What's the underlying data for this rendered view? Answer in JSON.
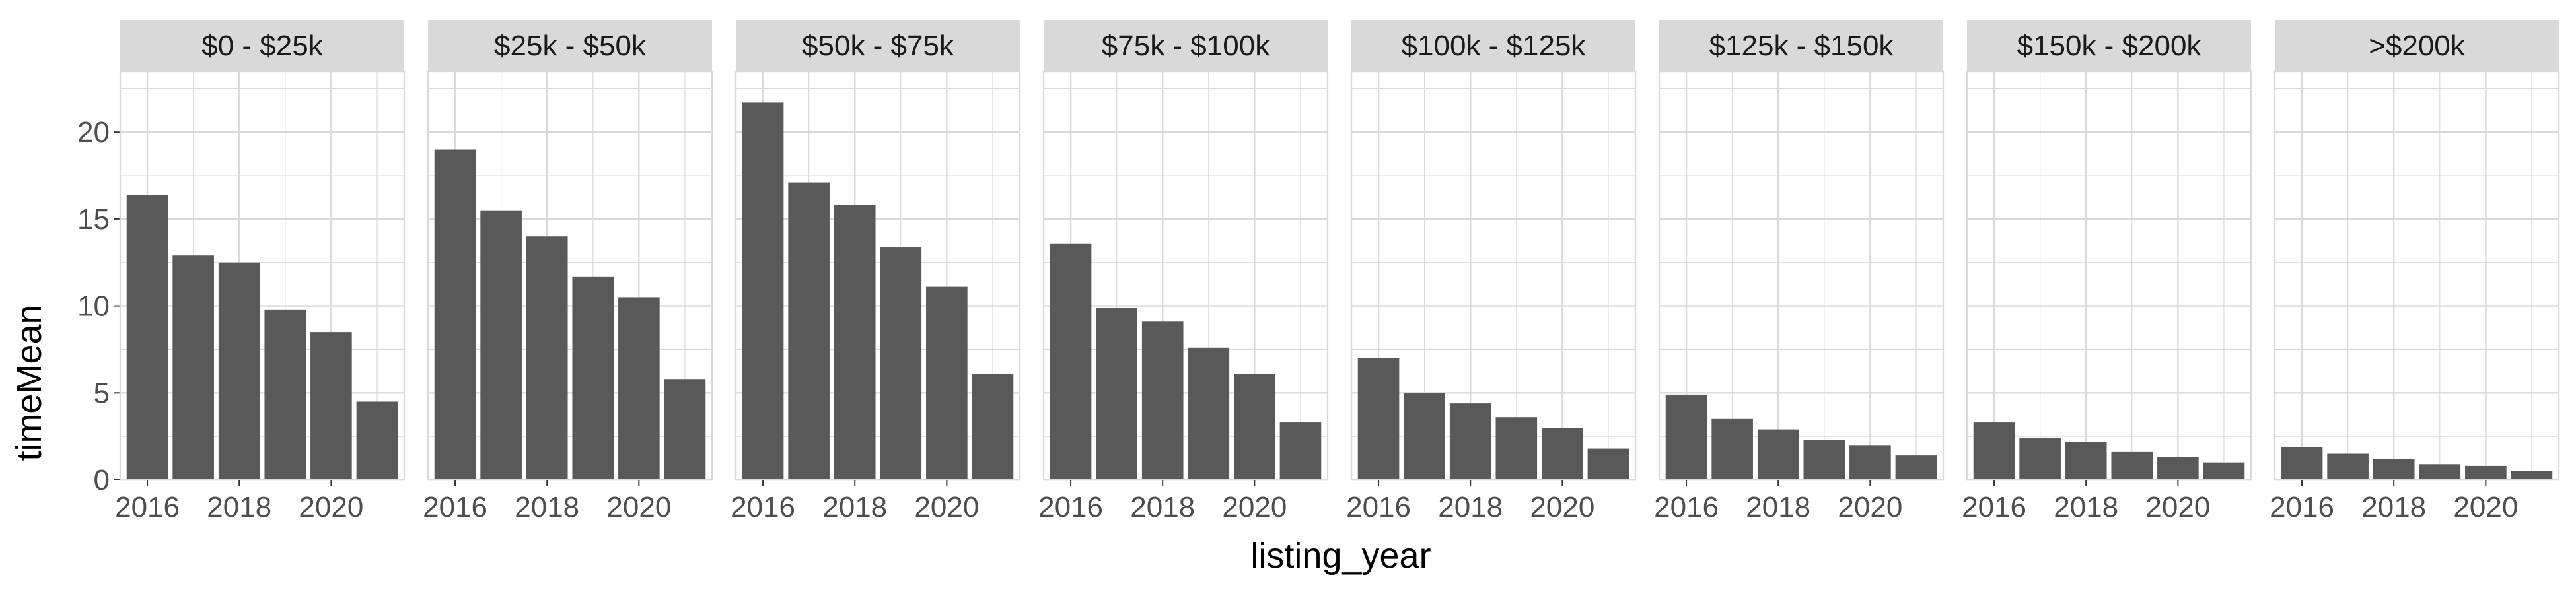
{
  "chart_data": {
    "type": "bar",
    "xlabel": "listing_year",
    "ylabel": "timeMean",
    "x": [
      2016,
      2017,
      2018,
      2019,
      2020,
      2021
    ],
    "x_ticks": [
      "2016",
      "2018",
      "2020"
    ],
    "y_ticks": [
      "0",
      "5",
      "10",
      "15",
      "20"
    ],
    "ylim": [
      0,
      23.5
    ],
    "grid": true,
    "bar_color": "#595959",
    "panel_background": "#ffffff",
    "grid_color": "#d9d9d9",
    "strip_color": "#d9d9d9",
    "facets": [
      {
        "label": "$0 - $25k",
        "values": [
          16.4,
          12.9,
          12.5,
          9.8,
          8.5,
          4.5
        ]
      },
      {
        "label": "$25k - $50k",
        "values": [
          19.0,
          15.5,
          14.0,
          11.7,
          10.5,
          5.8
        ]
      },
      {
        "label": "$50k - $75k",
        "values": [
          21.7,
          17.1,
          15.8,
          13.4,
          11.1,
          6.1
        ]
      },
      {
        "label": "$75k - $100k",
        "values": [
          13.6,
          9.9,
          9.1,
          7.6,
          6.1,
          3.3
        ]
      },
      {
        "label": "$100k - $125k",
        "values": [
          7.0,
          5.0,
          4.4,
          3.6,
          3.0,
          1.8
        ]
      },
      {
        "label": "$125k - $150k",
        "values": [
          4.9,
          3.5,
          2.9,
          2.3,
          2.0,
          1.4
        ]
      },
      {
        "label": "$150k - $200k",
        "values": [
          3.3,
          2.4,
          2.2,
          1.6,
          1.3,
          1.0
        ]
      },
      {
        "label": ">$200k",
        "values": [
          1.9,
          1.5,
          1.2,
          0.9,
          0.8,
          0.5
        ]
      }
    ]
  }
}
